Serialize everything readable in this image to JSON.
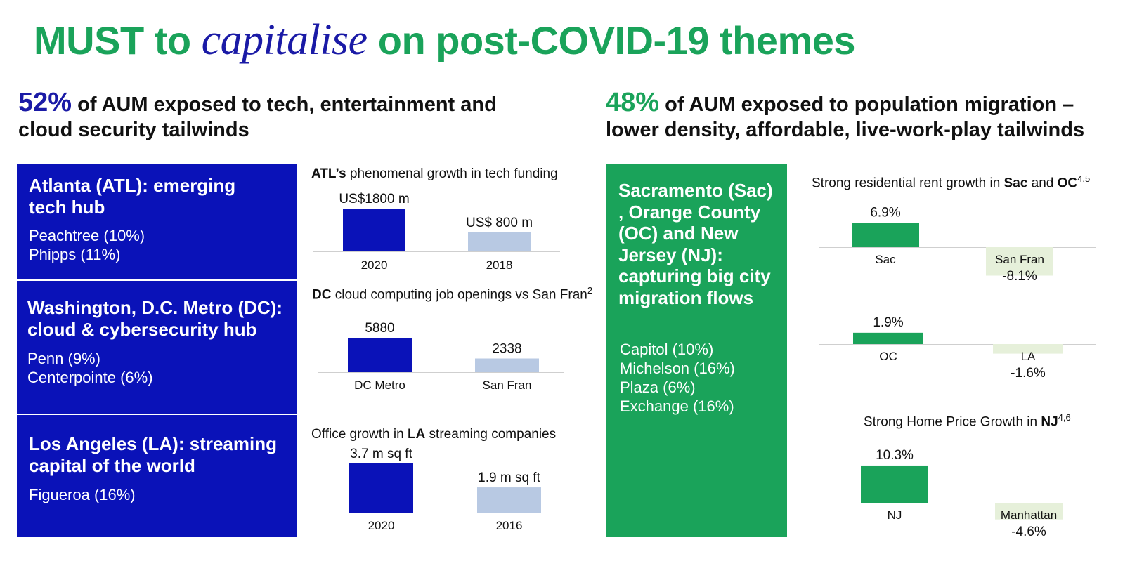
{
  "title": {
    "part1": "MUST to ",
    "italic": "capitalise",
    "part2": " on post-COVID-19 themes"
  },
  "left_heading": {
    "pct": "52%",
    "text": " of AUM exposed to tech, entertainment and cloud security tailwinds"
  },
  "right_heading": {
    "pct": "48%",
    "text": " of AUM exposed to population migration – lower density, affordable, live-work-play tailwinds"
  },
  "boxes": {
    "atl": {
      "title": "Atlanta (ATL): emerging tech hub",
      "items": [
        "Peachtree (10%)",
        "Phipps (11%)"
      ]
    },
    "dc": {
      "title": "Washington, D.C. Metro (DC): cloud & cybersecurity hub",
      "items": [
        "Penn (9%)",
        "Centerpointe (6%)"
      ]
    },
    "la": {
      "title": "Los Angeles (LA): streaming capital of the world",
      "items": [
        "Figueroa (16%)"
      ]
    },
    "green": {
      "title": "Sacramento (Sac) , Orange County (OC) and New Jersey (NJ): capturing big city migration flows",
      "items": [
        "Capitol (10%)",
        "Michelson (16%)",
        "Plaza (6%)",
        "Exchange (16%)"
      ]
    }
  },
  "chart_titles": {
    "atl": {
      "bold": "ATL’s",
      "rest": " phenomenal growth in tech funding"
    },
    "dc": {
      "bold": "DC",
      "rest": " cloud computing job openings vs San Fran",
      "sup": "2"
    },
    "la": {
      "pre": "Office growth in ",
      "bold": "LA",
      "rest": " streaming companies"
    },
    "rent": {
      "pre": "Strong residential rent growth in ",
      "bold1": "Sac",
      "mid": " and ",
      "bold2": "OC",
      "sup": "4,5"
    },
    "home": {
      "pre": "Strong Home Price Growth in ",
      "bold": "NJ",
      "sup": "4,6"
    }
  },
  "colors": {
    "blue": "#0a12b8",
    "light_blue": "#b8c9e3",
    "green": "#1aa35a",
    "light_green": "#e6f0da"
  },
  "chart_data": [
    {
      "id": "atl",
      "type": "bar",
      "title": "ATL’s phenomenal growth in tech funding",
      "categories": [
        "2020",
        "2018"
      ],
      "values": [
        1800,
        800
      ],
      "labels": [
        "US$1800 m",
        "US$ 800 m"
      ]
    },
    {
      "id": "dc",
      "type": "bar",
      "title": "DC cloud computing job openings vs San Fran",
      "categories": [
        "DC Metro",
        "San Fran"
      ],
      "values": [
        5880,
        2338
      ],
      "labels": [
        "5880",
        "2338"
      ]
    },
    {
      "id": "la",
      "type": "bar",
      "title": "Office growth in LA streaming companies",
      "categories": [
        "2020",
        "2016"
      ],
      "values": [
        3.7,
        1.9
      ],
      "labels": [
        "3.7 m sq ft",
        "1.9 m sq ft"
      ]
    },
    {
      "id": "sac",
      "type": "bar",
      "title": "Strong residential rent growth in Sac and OC",
      "categories": [
        "Sac",
        "San Fran"
      ],
      "values": [
        6.9,
        -8.1
      ],
      "labels": [
        "6.9%",
        "-8.1%"
      ]
    },
    {
      "id": "oc",
      "type": "bar",
      "categories": [
        "OC",
        "LA"
      ],
      "values": [
        1.9,
        -1.6
      ],
      "labels": [
        "1.9%",
        "-1.6%"
      ]
    },
    {
      "id": "nj",
      "type": "bar",
      "title": "Strong Home Price Growth in NJ",
      "categories": [
        "NJ",
        "Manhattan"
      ],
      "values": [
        10.3,
        -4.6
      ],
      "labels": [
        "10.3%",
        "-4.6%"
      ]
    }
  ]
}
